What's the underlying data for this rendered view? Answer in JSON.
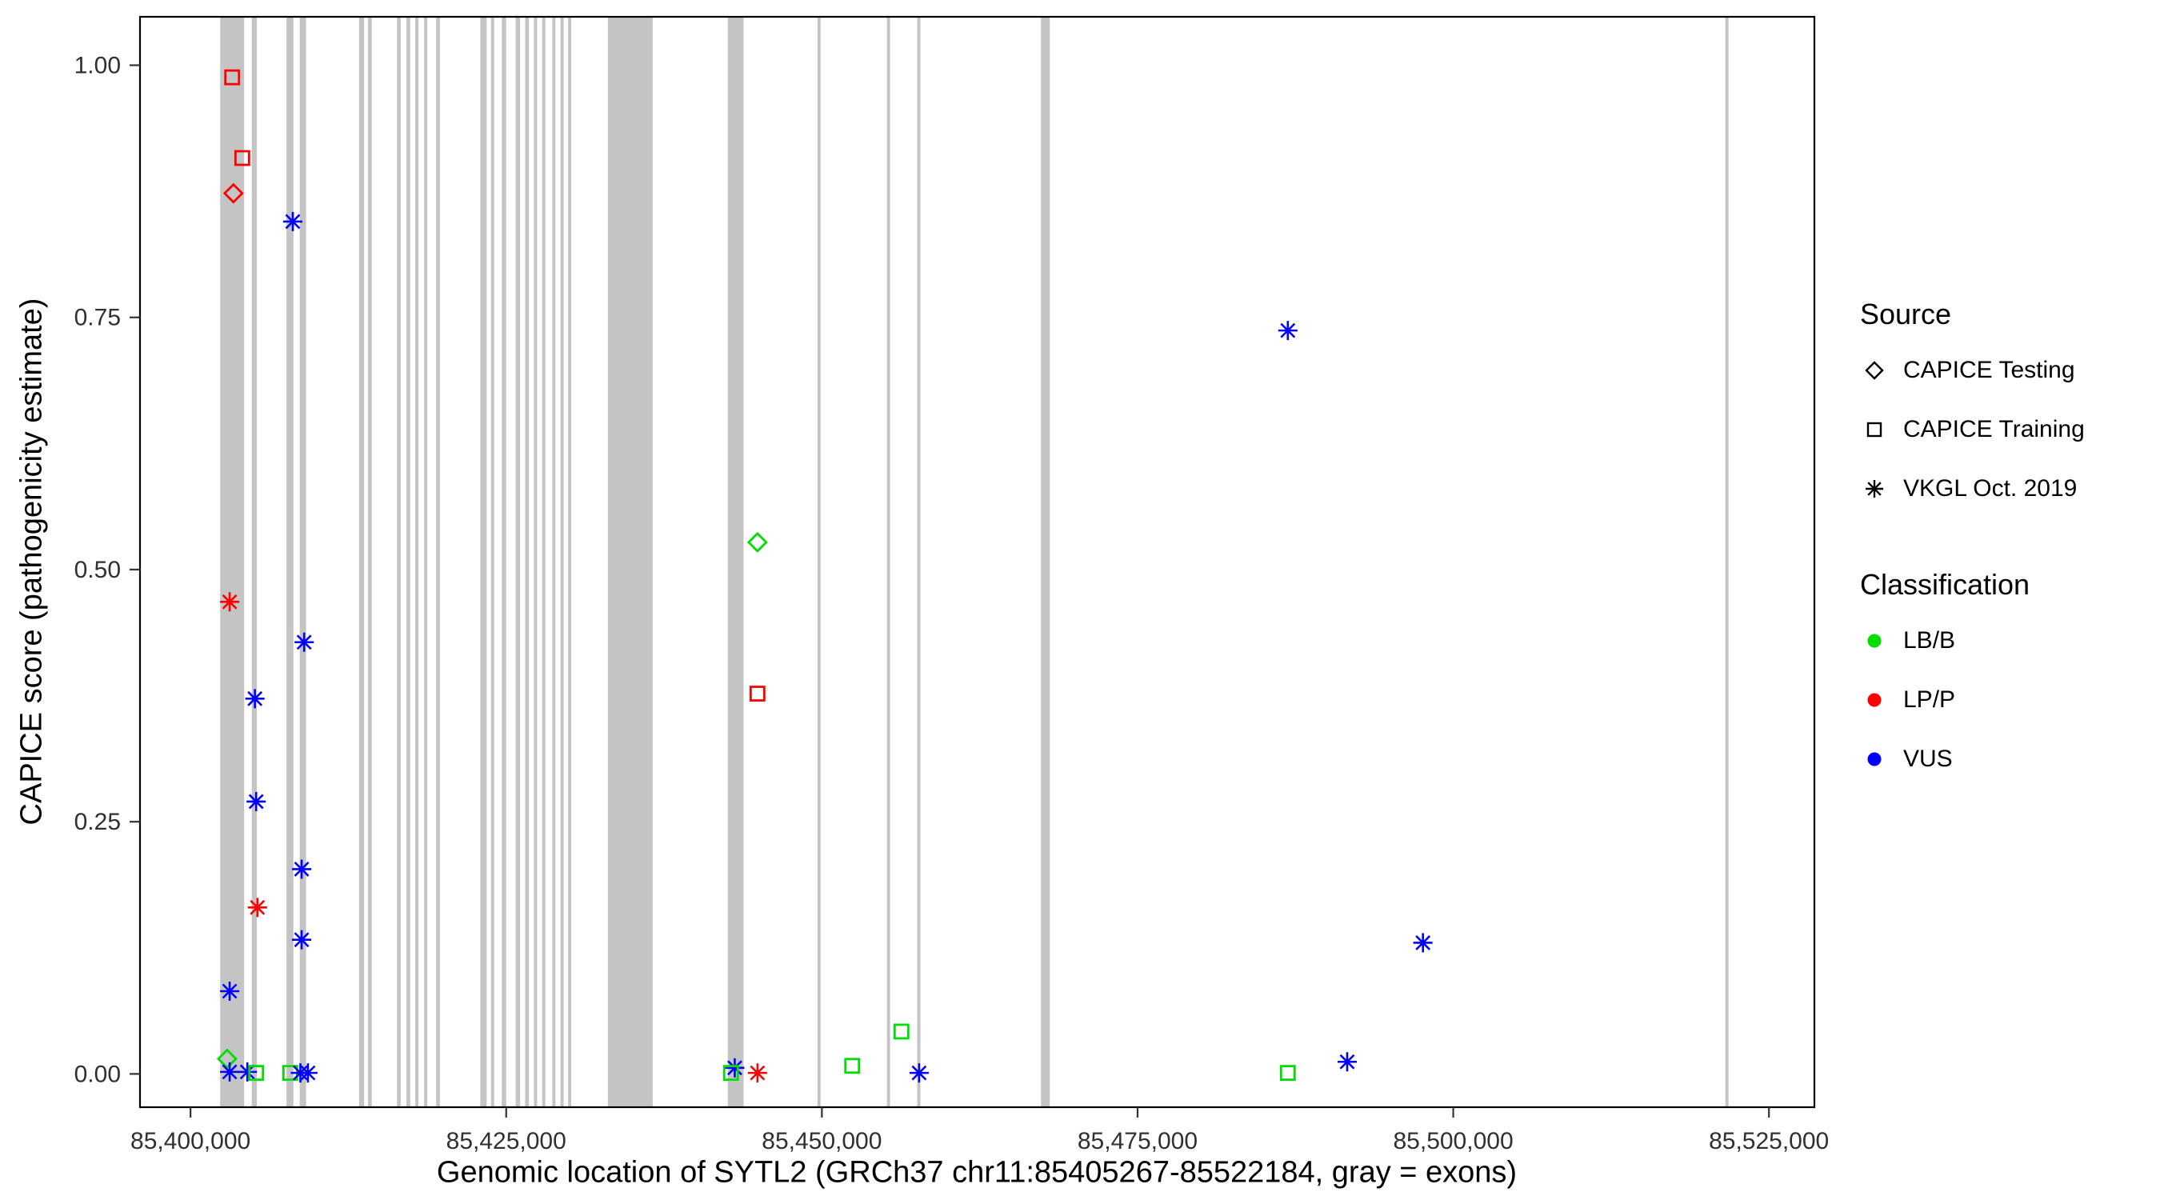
{
  "chart_data": {
    "type": "scatter",
    "title": "",
    "xlabel": "Genomic location of SYTL2 (GRCh37 chr11:85405267-85522184, gray = exons)",
    "ylabel": "CAPICE score (pathogenicity estimate)",
    "xlim": [
      85396000,
      85528600
    ],
    "ylim": [
      -0.033,
      1.048
    ],
    "grid": "off",
    "legend_position": "right",
    "exon_color": "#C4C4C4",
    "x_ticks": [
      {
        "value": 85400000,
        "label": "85,400,000"
      },
      {
        "value": 85425000,
        "label": "85,425,000"
      },
      {
        "value": 85450000,
        "label": "85,450,000"
      },
      {
        "value": 85475000,
        "label": "85,475,000"
      },
      {
        "value": 85500000,
        "label": "85,500,000"
      },
      {
        "value": 85525000,
        "label": "85,525,000"
      }
    ],
    "y_ticks": [
      {
        "value": 0.0,
        "label": "0.00"
      },
      {
        "value": 0.25,
        "label": "0.25"
      },
      {
        "value": 0.5,
        "label": "0.50"
      },
      {
        "value": 0.75,
        "label": "0.75"
      },
      {
        "value": 1.0,
        "label": "1.00"
      }
    ],
    "colors": {
      "LB/B": "#00DD00",
      "LP/P": "#FF0000",
      "VUS": "#0000FF"
    },
    "shapes": {
      "CAPICE Testing": "diamond",
      "CAPICE Training": "square",
      "VKGL Oct. 2019": "asterisk"
    },
    "legend": {
      "source": {
        "title": "Source",
        "items": [
          {
            "label": "CAPICE Testing",
            "shape": "diamond"
          },
          {
            "label": "CAPICE Training",
            "shape": "square"
          },
          {
            "label": "VKGL Oct. 2019",
            "shape": "asterisk"
          }
        ]
      },
      "classification": {
        "title": "Classification",
        "items": [
          {
            "label": "LB/B",
            "color": "#00DD00"
          },
          {
            "label": "LP/P",
            "color": "#FF0000"
          },
          {
            "label": "VUS",
            "color": "#0000FF"
          }
        ]
      }
    },
    "exons": [
      [
        85402350,
        85404250
      ],
      [
        85404850,
        85405250
      ],
      [
        85407600,
        85408150
      ],
      [
        85408650,
        85409150
      ],
      [
        85413350,
        85413750
      ],
      [
        85414050,
        85414350
      ],
      [
        85416350,
        85416650
      ],
      [
        85417100,
        85417400
      ],
      [
        85417800,
        85418050
      ],
      [
        85418500,
        85418750
      ],
      [
        85419450,
        85419750
      ],
      [
        85422950,
        85423450
      ],
      [
        85423800,
        85424050
      ],
      [
        85424650,
        85425000
      ],
      [
        85425750,
        85426100
      ],
      [
        85426500,
        85426800
      ],
      [
        85427200,
        85427450
      ],
      [
        85427850,
        85428100
      ],
      [
        85428650,
        85428900
      ],
      [
        85429300,
        85429550
      ],
      [
        85429900,
        85430150
      ],
      [
        85433050,
        85436600
      ],
      [
        85442550,
        85443800
      ],
      [
        85449650,
        85449900
      ],
      [
        85455150,
        85455400
      ],
      [
        85457550,
        85457800
      ],
      [
        85467350,
        85468050
      ],
      [
        85521550,
        85521800
      ]
    ],
    "points": [
      {
        "x": 85403300,
        "y": 0.988,
        "source": "CAPICE Training",
        "classification": "LP/P"
      },
      {
        "x": 85404100,
        "y": 0.908,
        "source": "CAPICE Training",
        "classification": "LP/P"
      },
      {
        "x": 85403400,
        "y": 0.873,
        "source": "CAPICE Testing",
        "classification": "LP/P"
      },
      {
        "x": 85408100,
        "y": 0.845,
        "source": "VKGL Oct. 2019",
        "classification": "VUS"
      },
      {
        "x": 85486900,
        "y": 0.737,
        "source": "VKGL Oct. 2019",
        "classification": "VUS"
      },
      {
        "x": 85444900,
        "y": 0.527,
        "source": "CAPICE Testing",
        "classification": "LB/B"
      },
      {
        "x": 85403100,
        "y": 0.468,
        "source": "VKGL Oct. 2019",
        "classification": "LP/P"
      },
      {
        "x": 85409000,
        "y": 0.428,
        "source": "VKGL Oct. 2019",
        "classification": "VUS"
      },
      {
        "x": 85405100,
        "y": 0.372,
        "source": "VKGL Oct. 2019",
        "classification": "VUS"
      },
      {
        "x": 85444900,
        "y": 0.377,
        "source": "CAPICE Training",
        "classification": "LP/P"
      },
      {
        "x": 85405200,
        "y": 0.27,
        "source": "VKGL Oct. 2019",
        "classification": "VUS"
      },
      {
        "x": 85408800,
        "y": 0.203,
        "source": "VKGL Oct. 2019",
        "classification": "VUS"
      },
      {
        "x": 85405300,
        "y": 0.165,
        "source": "VKGL Oct. 2019",
        "classification": "LP/P"
      },
      {
        "x": 85408800,
        "y": 0.133,
        "source": "VKGL Oct. 2019",
        "classification": "VUS"
      },
      {
        "x": 85497600,
        "y": 0.13,
        "source": "VKGL Oct. 2019",
        "classification": "VUS"
      },
      {
        "x": 85403100,
        "y": 0.082,
        "source": "VKGL Oct. 2019",
        "classification": "VUS"
      },
      {
        "x": 85402900,
        "y": 0.015,
        "source": "CAPICE Testing",
        "classification": "LB/B"
      },
      {
        "x": 85403100,
        "y": 0.002,
        "source": "VKGL Oct. 2019",
        "classification": "VUS"
      },
      {
        "x": 85404500,
        "y": 0.002,
        "source": "VKGL Oct. 2019",
        "classification": "VUS"
      },
      {
        "x": 85405200,
        "y": 0.001,
        "source": "CAPICE Training",
        "classification": "LB/B"
      },
      {
        "x": 85407900,
        "y": 0.001,
        "source": "CAPICE Training",
        "classification": "LB/B"
      },
      {
        "x": 85408700,
        "y": 0.001,
        "source": "VKGL Oct. 2019",
        "classification": "VUS"
      },
      {
        "x": 85409300,
        "y": 0.001,
        "source": "VKGL Oct. 2019",
        "classification": "VUS"
      },
      {
        "x": 85443100,
        "y": 0.006,
        "source": "VKGL Oct. 2019",
        "classification": "VUS"
      },
      {
        "x": 85442800,
        "y": 0.001,
        "source": "CAPICE Training",
        "classification": "LB/B"
      },
      {
        "x": 85444900,
        "y": 0.001,
        "source": "VKGL Oct. 2019",
        "classification": "LP/P"
      },
      {
        "x": 85452400,
        "y": 0.008,
        "source": "CAPICE Training",
        "classification": "LB/B"
      },
      {
        "x": 85456300,
        "y": 0.042,
        "source": "CAPICE Training",
        "classification": "LB/B"
      },
      {
        "x": 85457700,
        "y": 0.001,
        "source": "VKGL Oct. 2019",
        "classification": "VUS"
      },
      {
        "x": 85486900,
        "y": 0.001,
        "source": "CAPICE Training",
        "classification": "LB/B"
      },
      {
        "x": 85491600,
        "y": 0.012,
        "source": "VKGL Oct. 2019",
        "classification": "VUS"
      }
    ]
  }
}
